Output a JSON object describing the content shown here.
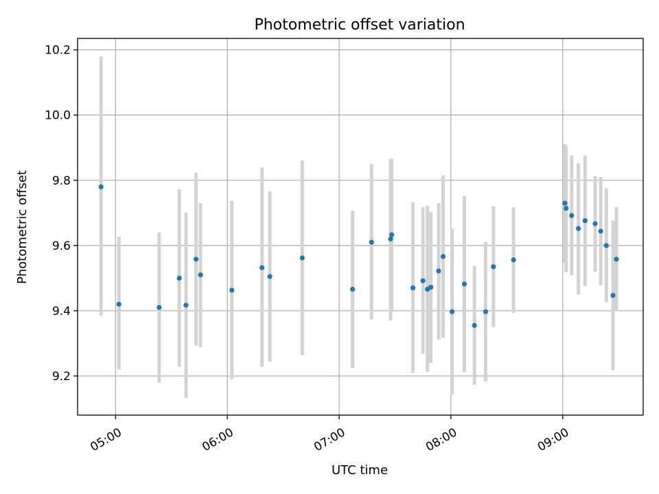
{
  "chart_data": {
    "type": "scatter",
    "title": "Photometric offset variation",
    "xlabel": "UTC time",
    "ylabel": "Photometric offset",
    "x_unit": "hours UTC",
    "xlim": [
      4.66,
      9.72
    ],
    "ylim": [
      9.08,
      10.235
    ],
    "xticks": [
      {
        "value": 5,
        "label": "05:00"
      },
      {
        "value": 6,
        "label": "06:00"
      },
      {
        "value": 7,
        "label": "07:00"
      },
      {
        "value": 8,
        "label": "08:00"
      },
      {
        "value": 9,
        "label": "09:00"
      }
    ],
    "yticks": [
      {
        "value": 9.2,
        "label": "9.2"
      },
      {
        "value": 9.4,
        "label": "9.4"
      },
      {
        "value": 9.6,
        "label": "9.6"
      },
      {
        "value": 9.8,
        "label": "9.8"
      },
      {
        "value": 10.0,
        "label": "10.0"
      },
      {
        "value": 10.2,
        "label": "10.2"
      }
    ],
    "grid": true,
    "marker_color": "#1f77b4",
    "errorbar_color": "#d3d3d3",
    "points": [
      {
        "x": 4.87,
        "y": 9.78,
        "err_low": 9.385,
        "err_high": 10.18
      },
      {
        "x": 5.03,
        "y": 9.42,
        "err_low": 9.22,
        "err_high": 9.627
      },
      {
        "x": 5.39,
        "y": 9.41,
        "err_low": 9.18,
        "err_high": 9.64
      },
      {
        "x": 5.57,
        "y": 9.5,
        "err_low": 9.228,
        "err_high": 9.772
      },
      {
        "x": 5.63,
        "y": 9.417,
        "err_low": 9.133,
        "err_high": 9.7
      },
      {
        "x": 5.72,
        "y": 9.558,
        "err_low": 9.293,
        "err_high": 9.824
      },
      {
        "x": 5.76,
        "y": 9.51,
        "err_low": 9.288,
        "err_high": 9.73
      },
      {
        "x": 6.04,
        "y": 9.463,
        "err_low": 9.19,
        "err_high": 9.737
      },
      {
        "x": 6.31,
        "y": 9.532,
        "err_low": 9.228,
        "err_high": 9.84
      },
      {
        "x": 6.38,
        "y": 9.505,
        "err_low": 9.244,
        "err_high": 9.766
      },
      {
        "x": 6.67,
        "y": 9.562,
        "err_low": 9.264,
        "err_high": 9.861
      },
      {
        "x": 7.12,
        "y": 9.466,
        "err_low": 9.225,
        "err_high": 9.707
      },
      {
        "x": 7.29,
        "y": 9.61,
        "err_low": 9.373,
        "err_high": 9.85
      },
      {
        "x": 7.46,
        "y": 9.62,
        "err_low": 9.37,
        "err_high": 9.866
      },
      {
        "x": 7.47,
        "y": 9.633,
        "err_low": 9.4,
        "err_high": 9.866
      },
      {
        "x": 7.66,
        "y": 9.47,
        "err_low": 9.21,
        "err_high": 9.732
      },
      {
        "x": 7.75,
        "y": 9.492,
        "err_low": 9.268,
        "err_high": 9.718
      },
      {
        "x": 7.79,
        "y": 9.466,
        "err_low": 9.212,
        "err_high": 9.722
      },
      {
        "x": 7.82,
        "y": 9.472,
        "err_low": 9.24,
        "err_high": 9.703
      },
      {
        "x": 7.89,
        "y": 9.522,
        "err_low": 9.312,
        "err_high": 9.73
      },
      {
        "x": 7.93,
        "y": 9.566,
        "err_low": 9.318,
        "err_high": 9.815
      },
      {
        "x": 8.01,
        "y": 9.397,
        "err_low": 9.143,
        "err_high": 9.652
      },
      {
        "x": 8.12,
        "y": 9.482,
        "err_low": 9.212,
        "err_high": 9.752
      },
      {
        "x": 8.21,
        "y": 9.355,
        "err_low": 9.173,
        "err_high": 9.537
      },
      {
        "x": 8.31,
        "y": 9.397,
        "err_low": 9.183,
        "err_high": 9.611
      },
      {
        "x": 8.38,
        "y": 9.535,
        "err_low": 9.35,
        "err_high": 9.72
      },
      {
        "x": 8.56,
        "y": 9.556,
        "err_low": 9.393,
        "err_high": 9.717
      },
      {
        "x": 9.02,
        "y": 9.73,
        "err_low": 9.548,
        "err_high": 9.911
      },
      {
        "x": 9.03,
        "y": 9.714,
        "err_low": 9.518,
        "err_high": 9.906
      },
      {
        "x": 9.08,
        "y": 9.692,
        "err_low": 9.509,
        "err_high": 9.876
      },
      {
        "x": 9.14,
        "y": 9.652,
        "err_low": 9.45,
        "err_high": 9.852
      },
      {
        "x": 9.2,
        "y": 9.676,
        "err_low": 9.476,
        "err_high": 9.876
      },
      {
        "x": 9.29,
        "y": 9.667,
        "err_low": 9.52,
        "err_high": 9.813
      },
      {
        "x": 9.34,
        "y": 9.644,
        "err_low": 9.478,
        "err_high": 9.81
      },
      {
        "x": 9.39,
        "y": 9.6,
        "err_low": 9.426,
        "err_high": 9.775
      },
      {
        "x": 9.45,
        "y": 9.447,
        "err_low": 9.218,
        "err_high": 9.677
      },
      {
        "x": 9.48,
        "y": 9.558,
        "err_low": 9.398,
        "err_high": 9.718
      }
    ]
  }
}
